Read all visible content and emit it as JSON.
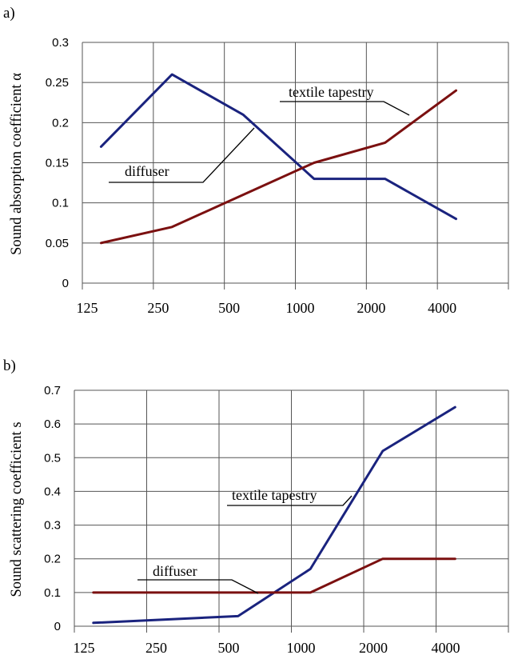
{
  "chart_data": [
    {
      "panel_label": "a)",
      "type": "line",
      "ylabel": "Sound absorption coefficient α",
      "ylim": [
        0,
        0.3
      ],
      "yticks": [
        "0",
        "0.05",
        "0.1",
        "0.15",
        "0.2",
        "0.25",
        "0.3"
      ],
      "xticks": [
        "125",
        "250",
        "500",
        "1000",
        "2000",
        "4000"
      ],
      "grid": true,
      "colors": {
        "textile": "#1a237e",
        "diffuser": "#7b1010"
      },
      "series": [
        {
          "key": "textile",
          "x": [
            150,
            300,
            600,
            1200,
            2400,
            4800
          ],
          "values": [
            0.17,
            0.26,
            0.21,
            0.13,
            0.13,
            0.08
          ]
        },
        {
          "key": "diffuser",
          "x": [
            150,
            300,
            600,
            1200,
            2400,
            4800
          ],
          "values": [
            0.05,
            0.07,
            0.11,
            0.15,
            0.175,
            0.24
          ]
        }
      ],
      "annotations": [
        {
          "key": "textile",
          "text": "textile tapestry"
        },
        {
          "key": "diffuser",
          "text": "diffuser"
        }
      ]
    },
    {
      "panel_label": "b)",
      "type": "line",
      "ylabel": "Sound scattering coefficient s",
      "ylim": [
        0,
        0.7
      ],
      "yticks": [
        "0",
        "0.1",
        "0.2",
        "0.3",
        "0.4",
        "0.5",
        "0.6",
        "0.7"
      ],
      "xticks": [
        "125",
        "250",
        "500",
        "1000",
        "2000",
        "4000"
      ],
      "grid": true,
      "colors": {
        "textile": "#1a237e",
        "diffuser": "#7b1010"
      },
      "series": [
        {
          "key": "textile",
          "x": [
            150,
            300,
            600,
            1200,
            2400,
            4800
          ],
          "values": [
            0.01,
            0.02,
            0.03,
            0.17,
            0.52,
            0.65
          ]
        },
        {
          "key": "diffuser",
          "x": [
            150,
            300,
            600,
            1200,
            2400,
            4800
          ],
          "values": [
            0.1,
            0.1,
            0.1,
            0.1,
            0.2,
            0.2
          ]
        }
      ],
      "annotations": [
        {
          "key": "textile",
          "text": "textile tapestry"
        },
        {
          "key": "diffuser",
          "text": "diffuser"
        }
      ]
    }
  ]
}
